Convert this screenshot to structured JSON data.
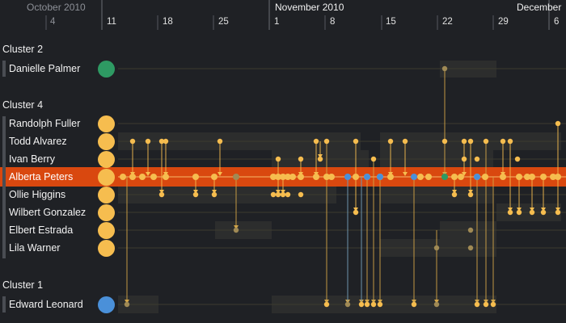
{
  "header": {
    "months": [
      {
        "label": "October 2010",
        "dim": true
      },
      {
        "label": "November 2010",
        "dim": false
      },
      {
        "label": "December",
        "dim": false
      }
    ],
    "days": [
      {
        "label": "4",
        "dim": true
      },
      {
        "label": "11",
        "dim": false
      },
      {
        "label": "18",
        "dim": false
      },
      {
        "label": "25",
        "dim": false
      },
      {
        "label": "1",
        "dim": false
      },
      {
        "label": "8",
        "dim": false
      },
      {
        "label": "15",
        "dim": false
      },
      {
        "label": "22",
        "dim": false
      },
      {
        "label": "29",
        "dim": false
      },
      {
        "label": "6",
        "dim": false
      }
    ]
  },
  "clusters": [
    {
      "label": "Cluster 2",
      "people": [
        {
          "name": "Danielle Palmer",
          "color": "#2e9a63"
        }
      ]
    },
    {
      "label": "Cluster 4",
      "people": [
        {
          "name": "Randolph Fuller",
          "color": "#f6bd4f"
        },
        {
          "name": "Todd Alvarez",
          "color": "#f6bd4f"
        },
        {
          "name": "Ivan Berry",
          "color": "#f6bd4f"
        },
        {
          "name": "Alberta Peters",
          "color": "#f6bd4f",
          "selected": true
        },
        {
          "name": "Ollie Higgins",
          "color": "#f6bd4f"
        },
        {
          "name": "Wilbert Gonzalez",
          "color": "#f6bd4f"
        },
        {
          "name": "Elbert Estrada",
          "color": "#f6bd4f"
        },
        {
          "name": "Lila Warner",
          "color": "#f6bd4f"
        }
      ]
    },
    {
      "label": "Cluster 1",
      "people": [
        {
          "name": "Edward Leonard",
          "color": "#4a90d9"
        }
      ]
    }
  ],
  "colors": {
    "background": "#1f2125",
    "highlight": "#d9480f",
    "event": "#f6bd4f",
    "event_dim": "#a08a55",
    "blue": "#4a90d9",
    "green": "#2e9a63"
  }
}
